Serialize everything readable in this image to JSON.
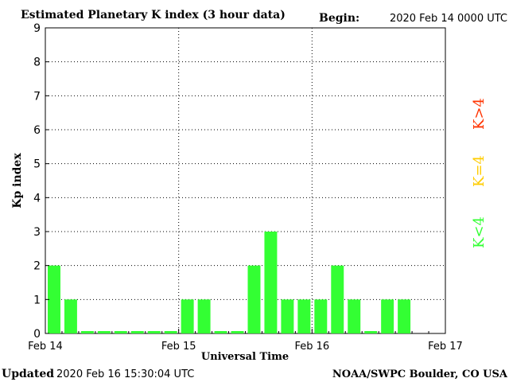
{
  "header": {
    "title": "Estimated Planetary K index (3 hour data)",
    "begin_label": "Begin:",
    "begin_value": "2020 Feb 14 0000 UTC"
  },
  "footer": {
    "updated_label": "Updated",
    "updated_value": "2020 Feb 16 15:30:04 UTC",
    "source": "NOAA/SWPC Boulder, CO USA"
  },
  "legend": {
    "items": [
      {
        "label": "K<4",
        "color": "#33ff33"
      },
      {
        "label": "K=4",
        "color": "#ffcc00"
      },
      {
        "label": "K>4",
        "color": "#ff3300"
      }
    ]
  },
  "chart_data": {
    "type": "bar",
    "title": "Estimated Planetary K index (3 hour data)",
    "xlabel": "Universal Time",
    "ylabel": "Kp index",
    "ylim": [
      0,
      9
    ],
    "yticks": [
      "0",
      "1",
      "2",
      "3",
      "4",
      "5",
      "6",
      "7",
      "8",
      "9"
    ],
    "xticks": [
      "Feb 14",
      "Feb 15",
      "Feb 16",
      "Feb 17"
    ],
    "x_range_days": 3,
    "bars_per_day": 8,
    "values": [
      2,
      1,
      0,
      0,
      0,
      0,
      0,
      0,
      1,
      1,
      0,
      0,
      2,
      3,
      1,
      1,
      1,
      2,
      1,
      0,
      1,
      1
    ],
    "bar_color": "#33ff33",
    "grid": "dotted, major ticks",
    "colors": {
      "low": "#33ff33",
      "equal": "#ffcc00",
      "high": "#ff3300"
    }
  }
}
